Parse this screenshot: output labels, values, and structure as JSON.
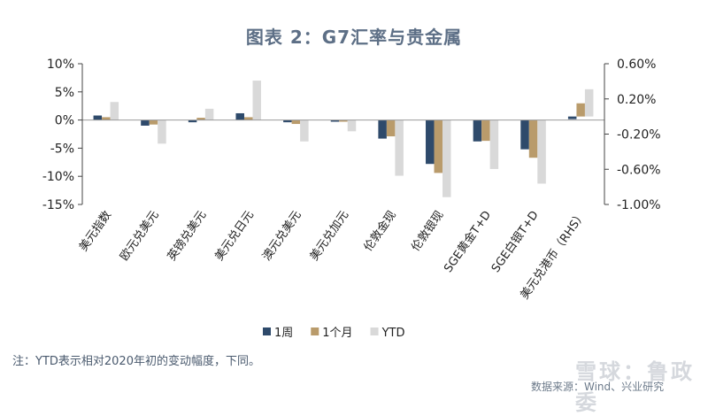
{
  "title": "图表 2：G7汇率与贵金属",
  "note": "注：YTD表示相对2020年初的变动幅度，下同。",
  "source": "数据来源：Wind、兴业研究",
  "watermark": "雪球：鲁政委",
  "chart_data": {
    "type": "bar",
    "categories": [
      "美元指数",
      "欧元兑美元",
      "英镑兑美元",
      "美元兑日元",
      "澳元兑美元",
      "美元兑加元",
      "伦敦金现",
      "伦敦银现",
      "SGE黄金T+D",
      "SGE白银T+D",
      "美元兑港币（RHS）"
    ],
    "series": [
      {
        "name": "1周",
        "color": "#2e4a6b",
        "values": [
          0.8,
          -1.0,
          -0.4,
          1.2,
          -0.4,
          -0.3,
          -3.3,
          -7.8,
          -3.8,
          -5.2,
          -0.03
        ]
      },
      {
        "name": "1个月",
        "color": "#b99b6b",
        "values": [
          0.5,
          -0.8,
          0.4,
          0.5,
          -0.7,
          -0.3,
          -2.9,
          -9.4,
          -3.7,
          -6.7,
          0.15
        ]
      },
      {
        "name": "YTD",
        "color": "#d9d9d9",
        "values": [
          3.2,
          -4.2,
          2.0,
          7.0,
          -3.8,
          -2.0,
          -9.9,
          -13.7,
          -8.7,
          -11.3,
          0.31
        ]
      }
    ],
    "rhs_category": "美元兑港币（RHS）",
    "y_left": {
      "min": -15,
      "max": 10,
      "ticks": [
        10,
        5,
        0,
        -5,
        -10,
        -15
      ],
      "tick_labels": [
        "10%",
        "5%",
        "0%",
        "-5%",
        "-10%",
        "-15%"
      ]
    },
    "y_right": {
      "min": -1.0,
      "max": 0.6,
      "ticks": [
        0.6,
        0.2,
        -0.2,
        -0.6,
        -1.0
      ],
      "tick_labels": [
        "0.60%",
        "0.20%",
        "-0.20%",
        "-0.60%",
        "-1.00%"
      ]
    },
    "legend": {
      "position": "bottom-center"
    },
    "grid": false
  }
}
